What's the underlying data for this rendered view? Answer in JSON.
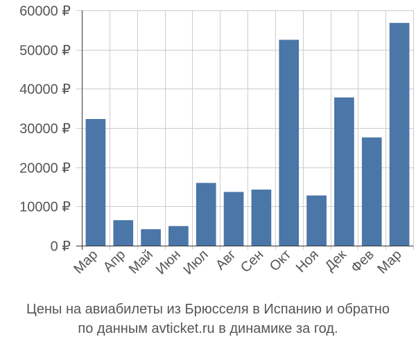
{
  "chart_data": {
    "type": "bar",
    "categories": [
      "Мар",
      "Апр",
      "Май",
      "Июн",
      "Июл",
      "Авг",
      "Сен",
      "Окт",
      "Ноя",
      "Дек",
      "Фев",
      "Мар"
    ],
    "values": [
      32300,
      6500,
      4200,
      5000,
      16000,
      13700,
      14300,
      52500,
      12800,
      37800,
      27600,
      56800
    ],
    "ylim": [
      0,
      60000
    ],
    "yticks": [
      0,
      10000,
      20000,
      30000,
      40000,
      50000,
      60000
    ],
    "ytick_labels": [
      "0 ₽",
      "10000 ₽",
      "20000 ₽",
      "30000 ₽",
      "40000 ₽",
      "50000 ₽",
      "60000 ₽"
    ],
    "grid": true,
    "bar_color": "#4a76a8",
    "grid_color": "#cccccc",
    "axis_color": "#333333",
    "text_color": "#555555"
  },
  "caption": {
    "line1": "Цены на авиабилеты из Брюсселя в Испанию и обратно",
    "line2": "по данным avticket.ru в динамике за год."
  }
}
